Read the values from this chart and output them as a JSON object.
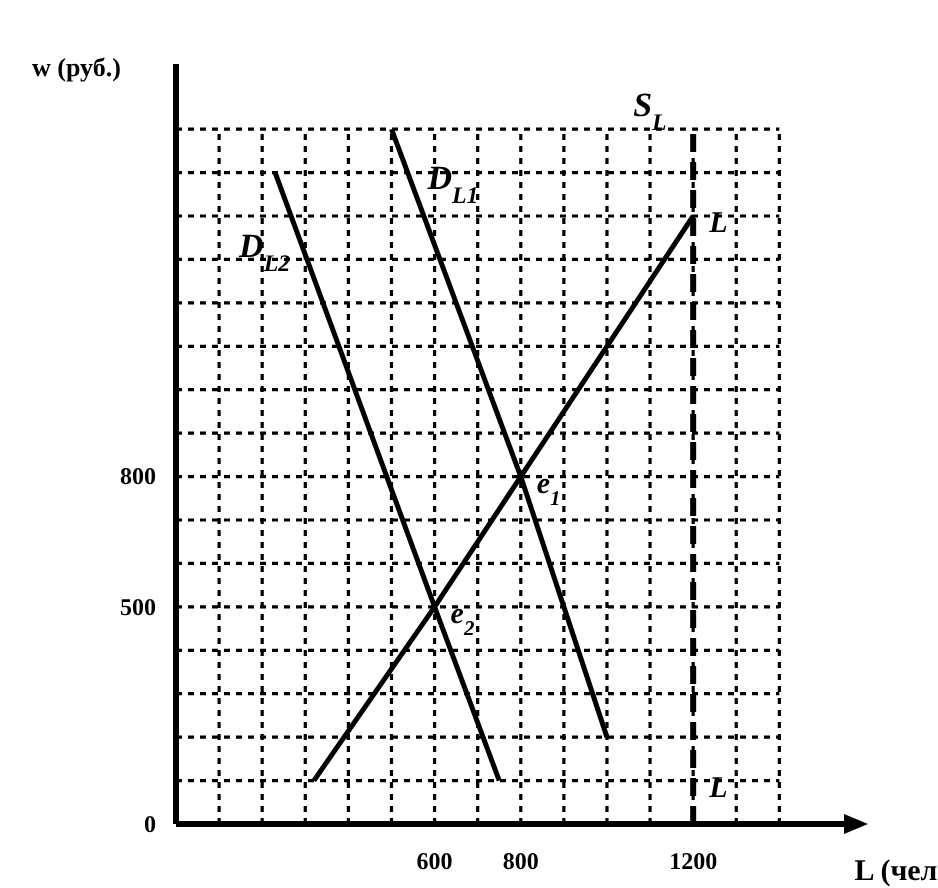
{
  "chart_data": {
    "type": "line",
    "xlabel": "L (чел",
    "ylabel": "w (руб.)",
    "xlim": [
      0,
      1550
    ],
    "ylim": [
      0,
      1750
    ],
    "xticks": [
      {
        "value": 100,
        "label": null
      },
      {
        "value": 200,
        "label": null
      },
      {
        "value": 300,
        "label": null
      },
      {
        "value": 400,
        "label": null
      },
      {
        "value": 500,
        "label": null
      },
      600,
      {
        "value": 700,
        "label": null
      },
      800,
      {
        "value": 900,
        "label": null
      },
      {
        "value": 1000,
        "label": null
      },
      {
        "value": 1100,
        "label": null
      },
      1200,
      {
        "value": 1300,
        "label": null
      },
      {
        "value": 1400,
        "label": null
      }
    ],
    "yticks": [
      0,
      {
        "value": 100,
        "label": null
      },
      {
        "value": 200,
        "label": null
      },
      {
        "value": 300,
        "label": null
      },
      {
        "value": 400,
        "label": null
      },
      500,
      {
        "value": 600,
        "label": null
      },
      {
        "value": 700,
        "label": null
      },
      800,
      {
        "value": 900,
        "label": null
      },
      {
        "value": 1000,
        "label": null
      },
      {
        "value": 1100,
        "label": null
      },
      {
        "value": 1200,
        "label": null
      },
      {
        "value": 1300,
        "label": null
      },
      {
        "value": 1400,
        "label": null
      },
      {
        "value": 1500,
        "label": null
      },
      {
        "value": 1600,
        "label": null
      }
    ],
    "grid": true,
    "marker": "none",
    "line_style": "solid",
    "series": [
      {
        "name": "D$_{L2}$",
        "color": "#000000",
        "x": [
          230,
          600,
          750
        ],
        "values": [
          1500,
          500,
          100
        ]
      },
      {
        "name": "D$_{L1}$",
        "color": "#000000",
        "x": [
          500,
          800,
          1000
        ],
        "values": [
          1600,
          800,
          200
        ]
      },
      {
        "name": "S$_{L}$",
        "color": "#000000",
        "x": [
          320,
          600,
          800,
          1200
        ],
        "values": [
          100,
          500,
          800,
          1400
        ]
      }
    ],
    "ref_lines": [
      {
        "axis": "x",
        "value": 1200,
        "color": "#000000",
        "line_style": "dashed"
      }
    ],
    "annotations": [
      {
        "text": "e$_{1}$",
        "x": 800,
        "y": 800
      },
      {
        "text": "e$_{2}$",
        "x": 600,
        "y": 500
      },
      {
        "text": "L",
        "x": 1200,
        "y": 1400
      },
      {
        "text": "L",
        "x": 1200,
        "y": 100
      }
    ]
  }
}
